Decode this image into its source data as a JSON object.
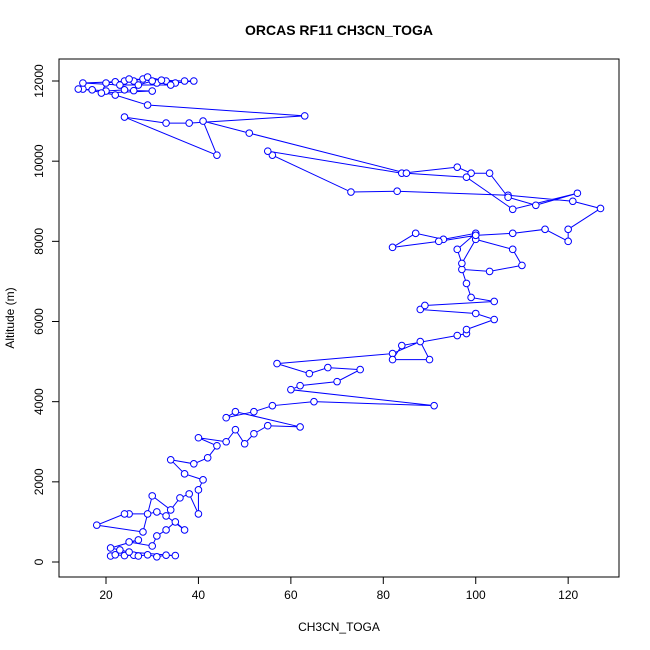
{
  "chart_data": {
    "type": "line",
    "title": "ORCAS RF11 CH3CN_TOGA",
    "x_label": "CH3CN_TOGA",
    "y_label": "Altitude (m)",
    "color": "#0000ff",
    "markers": true,
    "x": [
      21,
      22,
      24,
      26,
      27,
      29,
      31,
      33,
      35,
      25,
      23,
      21,
      27,
      25,
      30,
      31,
      33,
      35,
      37,
      33,
      31,
      29,
      25,
      24,
      18,
      28,
      30,
      34,
      36,
      38,
      40,
      40,
      41,
      37,
      34,
      39,
      42,
      44,
      40,
      46,
      48,
      50,
      52,
      55,
      62,
      48,
      46,
      52,
      56,
      65,
      91,
      60,
      62,
      70,
      75,
      68,
      64,
      57,
      82,
      88,
      90,
      82,
      84,
      96,
      98,
      98,
      104,
      100,
      88,
      89,
      104,
      99,
      98,
      97,
      103,
      110,
      108,
      100,
      97,
      96,
      100,
      93,
      87,
      82,
      92,
      100,
      108,
      115,
      120,
      120,
      127,
      121,
      107,
      83,
      73,
      56,
      55,
      84,
      96,
      99,
      103,
      107,
      113,
      122,
      108,
      98,
      85,
      51,
      41,
      44,
      24,
      33,
      38,
      63,
      29,
      22,
      15,
      14,
      17,
      20,
      24,
      26,
      30,
      19,
      20,
      24,
      28,
      31,
      35,
      39,
      33,
      29,
      26,
      22,
      15,
      23,
      34,
      30,
      27,
      25,
      32,
      37
    ],
    "values": [
      150,
      180,
      160,
      170,
      150,
      180,
      130,
      170,
      160,
      250,
      300,
      350,
      550,
      500,
      400,
      650,
      800,
      1000,
      800,
      1150,
      1250,
      1200,
      1200,
      1200,
      920,
      750,
      1650,
      1300,
      1600,
      1700,
      1200,
      1800,
      2050,
      2200,
      2550,
      2450,
      2600,
      2900,
      3100,
      3000,
      3300,
      2950,
      3200,
      3400,
      3370,
      3750,
      3600,
      3750,
      3900,
      4000,
      3900,
      4300,
      4400,
      4500,
      4800,
      4850,
      4700,
      4950,
      5200,
      5500,
      5050,
      5050,
      5400,
      5650,
      5700,
      5800,
      6050,
      6200,
      6300,
      6400,
      6500,
      6600,
      6950,
      7300,
      7250,
      7400,
      7800,
      8050,
      7450,
      7800,
      8200,
      8050,
      8200,
      7850,
      8000,
      8150,
      8200,
      8300,
      8000,
      8300,
      8820,
      9000,
      9150,
      9250,
      9230,
      10150,
      10250,
      9700,
      9850,
      9700,
      9700,
      9100,
      8900,
      9200,
      8800,
      9600,
      9700,
      10700,
      11000,
      10150,
      11100,
      10950,
      10950,
      11130,
      11400,
      11650,
      11800,
      11800,
      11780,
      11750,
      11780,
      11760,
      11750,
      11700,
      11950,
      12000,
      12050,
      11950,
      11950,
      12000,
      12000,
      12100,
      12000,
      11980,
      11950,
      11900,
      11900,
      12000,
      11900,
      12050,
      12020,
      12000
    ],
    "xlim": [
      9.83,
      131.0
    ],
    "ylim": [
      -374,
      12549
    ],
    "xticks": [
      20,
      40,
      60,
      80,
      100,
      120
    ],
    "yticks": [
      0,
      2000,
      4000,
      6000,
      8000,
      10000,
      12000
    ]
  }
}
